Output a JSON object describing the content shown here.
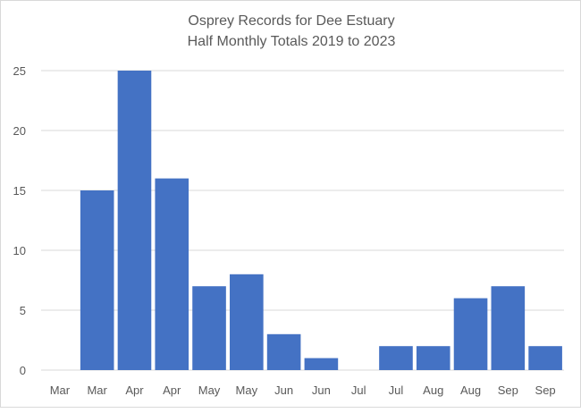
{
  "chart_data": {
    "type": "bar",
    "title": "Osprey Records for Dee Estuary",
    "subtitle": "Half Monthly Totals 2019 to 2023",
    "categories": [
      "Mar",
      "Mar",
      "Apr",
      "Apr",
      "May",
      "May",
      "Jun",
      "Jun",
      "Jul",
      "Jul",
      "Aug",
      "Aug",
      "Sep",
      "Sep"
    ],
    "values": [
      0,
      15,
      25,
      16,
      7,
      8,
      3,
      1,
      0,
      2,
      2,
      6,
      7,
      2
    ],
    "ylim": [
      0,
      25
    ],
    "yticks": [
      "0",
      "5",
      "10",
      "15",
      "20",
      "25"
    ],
    "grid": true,
    "legend": "none",
    "colors": {
      "bar": "#4472c4",
      "grid": "#d9d9d9",
      "text": "#595959"
    }
  }
}
